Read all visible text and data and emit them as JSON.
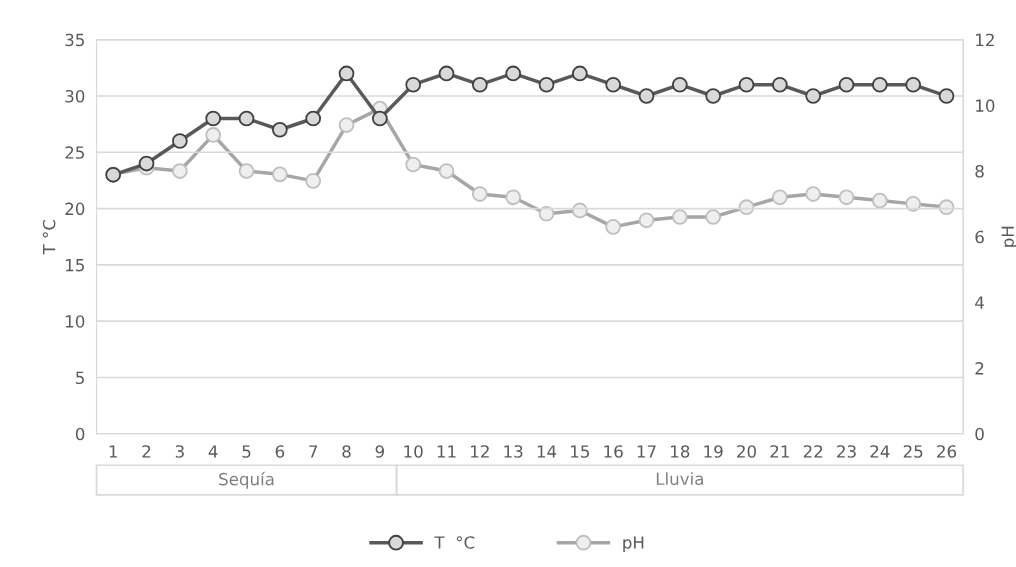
{
  "chart_data": {
    "type": "line",
    "categories": [
      "1",
      "2",
      "3",
      "4",
      "5",
      "6",
      "7",
      "8",
      "9",
      "10",
      "11",
      "12",
      "13",
      "14",
      "15",
      "16",
      "17",
      "18",
      "19",
      "20",
      "21",
      "22",
      "23",
      "24",
      "25",
      "26"
    ],
    "series": [
      {
        "name": "T  °C",
        "color": "#595959",
        "values": [
          23,
          24,
          26,
          28,
          28,
          27,
          28,
          32,
          28,
          31,
          32,
          31,
          32,
          31,
          32,
          31,
          30,
          31,
          30,
          31,
          31,
          30,
          31,
          31,
          31,
          30
        ]
      },
      {
        "name": "pH",
        "color": "#a6a6a6",
        "axis": "y2",
        "values": [
          7.9,
          8.1,
          8.0,
          9.1,
          8.0,
          7.9,
          7.7,
          9.4,
          9.9,
          8.2,
          8.0,
          7.3,
          7.2,
          6.7,
          6.8,
          6.3,
          6.5,
          6.6,
          6.6,
          6.9,
          7.2,
          7.3,
          7.2,
          7.1,
          7.0,
          6.9
        ]
      }
    ],
    "ylabel": "T °C",
    "y2label": "pH",
    "ylim": [
      0,
      35
    ],
    "yticks": [
      0,
      5,
      10,
      15,
      20,
      25,
      30,
      35
    ],
    "y2lim": [
      0,
      12
    ],
    "y2ticks": [
      0,
      2,
      4,
      6,
      8,
      10,
      12
    ],
    "annotations": [
      "Sequía",
      "Lluvia"
    ],
    "grid": "y",
    "legend": "bottom",
    "marker": "circle",
    "line_style": "solid"
  }
}
